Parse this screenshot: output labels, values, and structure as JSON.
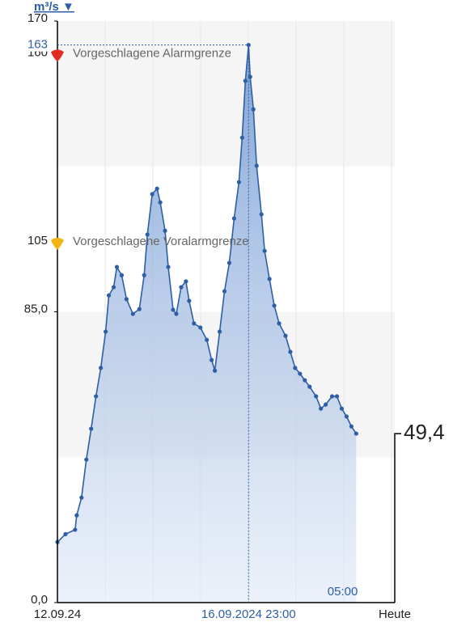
{
  "chart_data": {
    "type": "area",
    "y_unit": "m³/s ▼",
    "x": [
      0,
      5,
      11,
      12,
      15,
      18,
      21,
      24,
      27,
      30,
      32,
      35,
      37,
      40,
      43,
      47,
      51,
      54,
      56,
      59,
      62,
      64,
      67,
      69,
      72,
      74,
      77,
      80,
      82,
      85,
      89,
      93,
      96,
      98,
      101,
      104,
      107,
      110,
      113,
      115,
      117,
      119,
      120,
      122,
      124,
      127,
      129,
      132,
      135,
      138,
      142,
      145,
      148,
      151,
      154,
      157,
      161,
      164,
      167,
      171,
      174,
      177,
      180,
      183,
      186
    ],
    "values": [
      17.7,
      20,
      21.3,
      25.5,
      30.7,
      41.8,
      50.8,
      60.3,
      68.6,
      79.2,
      89.8,
      92.2,
      98.1,
      95.7,
      88.7,
      84.4,
      85.8,
      95.7,
      107.6,
      119.4,
      121,
      117,
      108.7,
      98.1,
      85.6,
      84.4,
      92.2,
      93.9,
      88.2,
      81.6,
      80.4,
      76.8,
      70.9,
      67.8,
      79.2,
      91,
      99.3,
      112.3,
      122.9,
      135.9,
      152.5,
      163,
      153.7,
      144.2,
      127.7,
      113.5,
      102.8,
      94.6,
      86.8,
      81.6,
      78,
      73.3,
      68.6,
      66.9,
      65,
      63.1,
      60.3,
      56.7,
      57.9,
      60.3,
      60.3,
      56.7,
      54.4,
      51.5,
      49.4
    ],
    "color": "#2e5ea6",
    "xlim": [
      0,
      210
    ],
    "ylim": [
      0,
      170
    ],
    "yticks": [
      {
        "value": 0,
        "label": "0,0"
      },
      {
        "value": 85,
        "label": "85,0"
      },
      105,
      160,
      170
    ],
    "xticks": [
      {
        "value": 0,
        "label": "12.09.24"
      },
      {
        "value": 186,
        "label": "05:00"
      },
      {
        "value": 210,
        "label": "Heute"
      }
    ],
    "thresholds": [
      {
        "value": 160,
        "label": "Vorgeschlagene Alarmgrenze",
        "color": "#e02b20"
      },
      {
        "value": 105,
        "label": "Vorgeschlagene Voralarmgrenze",
        "color": "#f0b416"
      }
    ],
    "crosshair": {
      "x": 119,
      "y": 163,
      "x_label": "16.09.2024 23:00"
    },
    "current": {
      "value": 49.4,
      "label": "49,4"
    }
  }
}
